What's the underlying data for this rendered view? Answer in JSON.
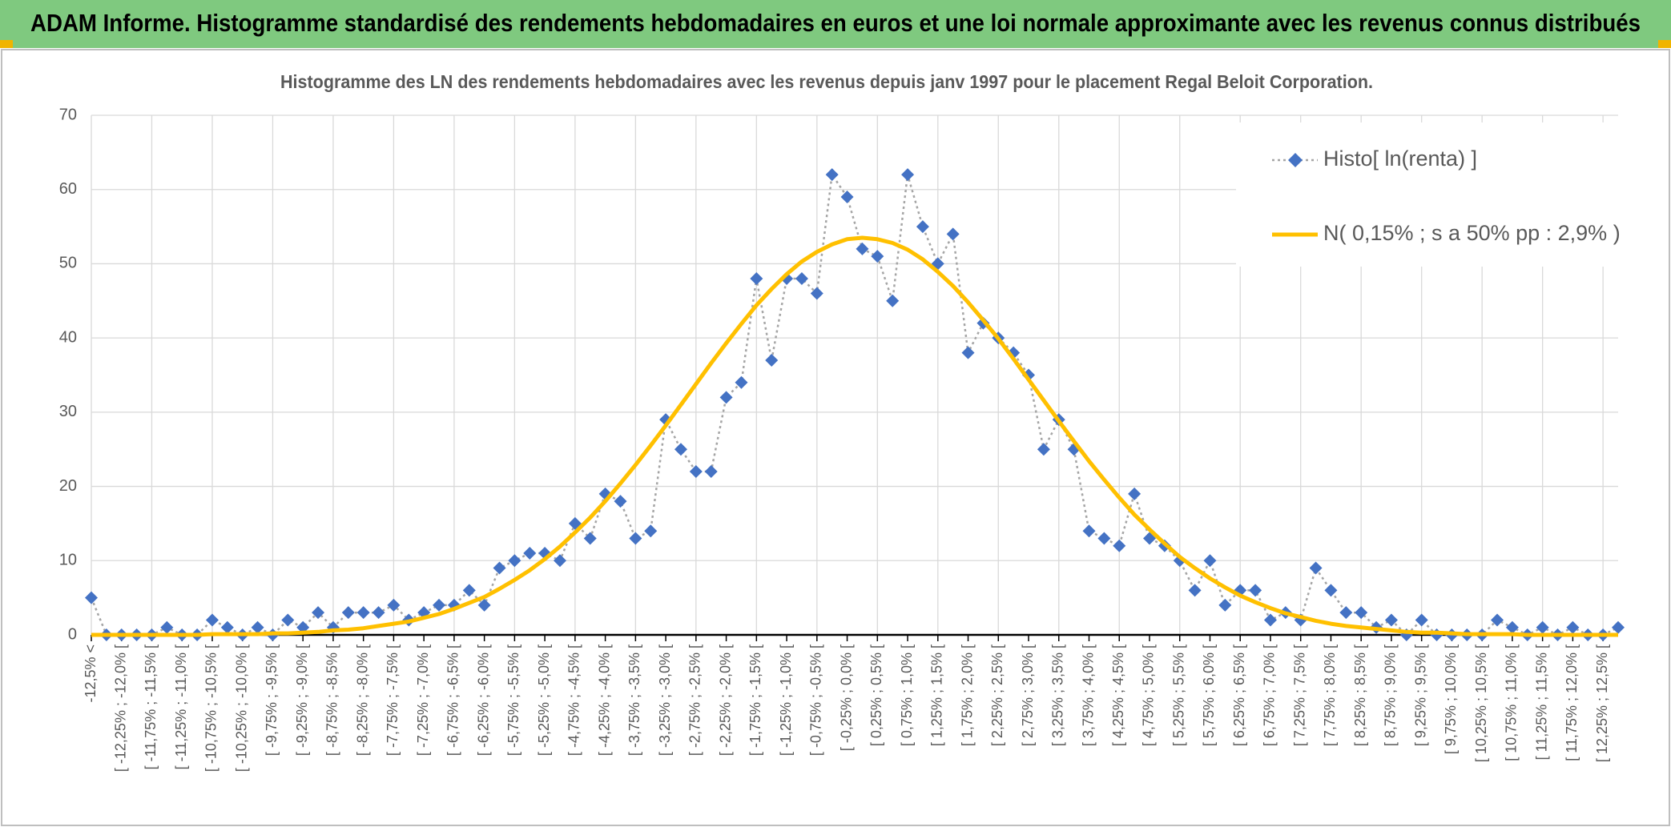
{
  "header": {
    "title": "ADAM Informe. Histogramme standardisé des rendements hebdomadaires en euros et une loi normale approximante avec les revenus connus distribués"
  },
  "chart_data": {
    "type": "line",
    "title": "Histogramme des LN des rendements hebdomadaires avec les revenus depuis janv 1997 pour le placement Regal Beloit Corporation.",
    "categories": [
      "-12,5% <",
      null,
      "[ -12,25% ; -12,0% [",
      null,
      "[ -11,75% ; -11,5% [",
      null,
      "[ -11,25% ; -11,0% [",
      null,
      "[ -10,75% ; -10,5% [",
      null,
      "[ -10,25% ; -10,0% [",
      null,
      "[ -9,75% ; -9,5% [",
      null,
      "[ -9,25% ; -9,0% [",
      null,
      "[ -8,75% ; -8,5% [",
      null,
      "[ -8,25% ; -8,0% [",
      null,
      "[ -7,75% ; -7,5% [",
      null,
      "[ -7,25% ; -7,0% [",
      null,
      "[ -6,75% ; -6,5% [",
      null,
      "[ -6,25% ; -6,0% [",
      null,
      "[ -5,75% ; -5,5% [",
      null,
      "[ -5,25% ; -5,0% [",
      null,
      "[ -4,75% ; -4,5% [",
      null,
      "[ -4,25% ; -4,0% [",
      null,
      "[ -3,75% ; -3,5% [",
      null,
      "[ -3,25% ; -3,0% [",
      null,
      "[ -2,75% ; -2,5% [",
      null,
      "[ -2,25% ; -2,0% [",
      null,
      "[ -1,75% ; -1,5% [",
      null,
      "[ -1,25% ; -1,0% [",
      null,
      "[ -0,75% ; -0,5% [",
      null,
      "[ -0,25% ; 0,0% [",
      null,
      "[ 0,25% ; 0,5% [",
      null,
      "[ 0,75% ; 1,0% [",
      null,
      "[ 1,25% ; 1,5% [",
      null,
      "[ 1,75% ; 2,0% [",
      null,
      "[ 2,25% ; 2,5% [",
      null,
      "[ 2,75% ; 3,0% [",
      null,
      "[ 3,25% ; 3,5% [",
      null,
      "[ 3,75% ; 4,0% [",
      null,
      "[ 4,25% ; 4,5% [",
      null,
      "[ 4,75% ; 5,0% [",
      null,
      "[ 5,25% ; 5,5% [",
      null,
      "[ 5,75% ; 6,0% [",
      null,
      "[ 6,25% ; 6,5% [",
      null,
      "[ 6,75% ; 7,0% [",
      null,
      "[ 7,25% ; 7,5% [",
      null,
      "[ 7,75% ; 8,0% [",
      null,
      "[ 8,25% ; 8,5% [",
      null,
      "[ 8,75% ; 9,0% [",
      null,
      "[ 9,25% ; 9,5% [",
      null,
      "[ 9,75% ; 10,0% [",
      null,
      "[ 10,25% ; 10,5% [",
      null,
      "[ 10,75% ; 11,0% [",
      null,
      "[ 11,25% ; 11,5% [",
      null,
      "[ 11,75% ; 12,0% [",
      null,
      "[ 12,25% ; 12,5% [",
      null
    ],
    "series": [
      {
        "name": "Histo[ ln(renta) ]",
        "color": "#4472c4",
        "line_color": "#a5a5a5",
        "marker": "diamond",
        "values": [
          5,
          0,
          0,
          0,
          0,
          1,
          0,
          0,
          2,
          1,
          0,
          1,
          0,
          2,
          1,
          3,
          1,
          3,
          3,
          3,
          4,
          2,
          3,
          4,
          4,
          6,
          4,
          9,
          10,
          11,
          11,
          10,
          15,
          13,
          19,
          18,
          13,
          14,
          29,
          25,
          22,
          22,
          32,
          34,
          48,
          37,
          48,
          48,
          46,
          62,
          59,
          52,
          51,
          45,
          62,
          55,
          50,
          54,
          38,
          42,
          40,
          38,
          35,
          25,
          29,
          25,
          14,
          13,
          12,
          19,
          13,
          12,
          10,
          6,
          10,
          4,
          6,
          6,
          2,
          3,
          2,
          9,
          6,
          3,
          3,
          1,
          2,
          0,
          2,
          0,
          0,
          0,
          0,
          2,
          1,
          0,
          1,
          0,
          1,
          0,
          0,
          1
        ]
      },
      {
        "name": "N( 0,15% ; s a 50% pp : 2,9% )",
        "color": "#ffc000",
        "values": [
          0,
          0,
          0,
          0,
          0,
          0,
          0,
          0,
          0.1,
          0.1,
          0.1,
          0.1,
          0.2,
          0.2,
          0.3,
          0.4,
          0.6,
          0.7,
          0.9,
          1.2,
          1.5,
          1.8,
          2.3,
          2.8,
          3.5,
          4.3,
          5.1,
          6.2,
          7.4,
          8.7,
          10.2,
          11.9,
          13.8,
          15.8,
          18,
          20.4,
          22.9,
          25.5,
          28.2,
          31,
          33.8,
          36.6,
          39.3,
          41.9,
          44.4,
          46.6,
          48.6,
          50.3,
          51.6,
          52.6,
          53.3,
          53.5,
          53.3,
          52.8,
          51.9,
          50.6,
          48.9,
          47,
          44.8,
          42.4,
          39.9,
          37.2,
          34.4,
          31.6,
          28.8,
          26.1,
          23.4,
          20.9,
          18.5,
          16.2,
          14.2,
          12.3,
          10.5,
          9,
          7.6,
          6.4,
          5.3,
          4.4,
          3.6,
          2.9,
          2.4,
          1.9,
          1.5,
          1.2,
          1,
          0.8,
          0.6,
          0.4,
          0.3,
          0.3,
          0.2,
          0.1,
          0.1,
          0.1,
          0.1,
          0,
          0,
          0,
          0,
          0,
          0,
          0
        ]
      }
    ],
    "ylim": [
      0,
      70
    ],
    "yticks": [
      0,
      10,
      20,
      30,
      40,
      50,
      60,
      70
    ],
    "grid": true,
    "legend": "upper right"
  }
}
